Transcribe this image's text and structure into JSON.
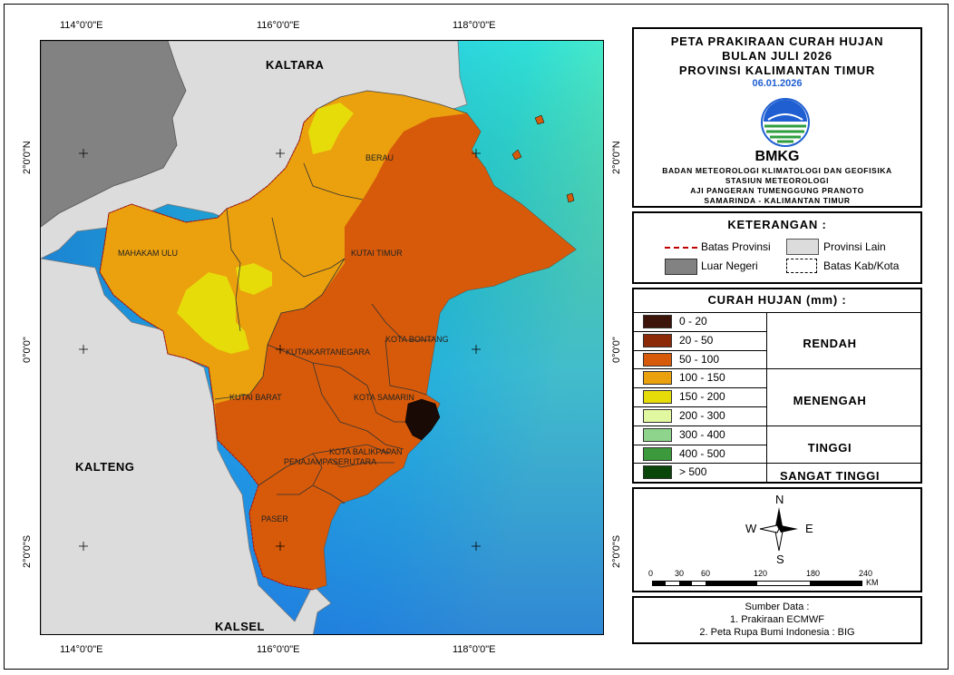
{
  "header": {
    "title_lines": [
      "PETA PRAKIRAAN CURAH HUJAN",
      "BULAN JULI 2026",
      "PROVINSI KALIMANTAN TIMUR"
    ],
    "date": "06.01.2026",
    "logo_text": "BMKG",
    "org_lines": [
      "BADAN METEOROLOGI KLIMATOLOGI DAN GEOFISIKA",
      "STASIUN METEOROLOGI",
      "AJI PANGERAN TUMENGGUNG PRANOTO",
      "SAMARINDA - KALIMANTAN TIMUR"
    ]
  },
  "legend": {
    "title": "KETERANGAN :",
    "items": {
      "batas_provinsi": "Batas Provinsi",
      "provinsi_lain": "Provinsi Lain",
      "luar_negeri": "Luar Negeri",
      "batas_kab": "Batas Kab/Kota"
    },
    "colors": {
      "batas_provinsi": "#c00000",
      "provinsi_lain": "#dcdcdc",
      "luar_negeri": "#828282"
    }
  },
  "rainfall": {
    "title": "CURAH HUJAN (mm) :",
    "classes": [
      {
        "label": "0 - 20",
        "color": "#3c1409"
      },
      {
        "label": "20 - 50",
        "color": "#8c2a08"
      },
      {
        "label": "50 - 100",
        "color": "#d65a0a"
      },
      {
        "label": "100 - 150",
        "color": "#eba00e"
      },
      {
        "label": "150  - 200",
        "color": "#e6dc0a"
      },
      {
        "label": "200 - 300",
        "color": "#e1f7a0"
      },
      {
        "label": "300 - 400",
        "color": "#8fd48c"
      },
      {
        "label": "400 - 500",
        "color": "#3c9a3c"
      },
      {
        "label": "> 500",
        "color": "#0a460a"
      }
    ],
    "categories": [
      "RENDAH",
      "MENENGAH",
      "TINGGI",
      "SANGAT TINGGI"
    ]
  },
  "compass": {
    "n": "N",
    "s": "S",
    "e": "E",
    "w": "W"
  },
  "scale": {
    "ticks": [
      "0",
      "30",
      "60",
      "120",
      "180",
      "240"
    ],
    "unit": "KM"
  },
  "source": {
    "title": "Sumber Data :",
    "lines": [
      "1. Prakiraan ECMWF",
      "2. Peta Rupa Bumi Indonesia : BIG"
    ]
  },
  "coordinates": {
    "longitudes": [
      "114°0'0\"E",
      "116°0'0\"E",
      "118°0'0\"E"
    ],
    "latitudes": [
      "2°0'0\"N",
      "0°0'0\"",
      "2°0'0\"S"
    ]
  },
  "map_labels": {
    "kaltara": "KALTARA",
    "kalteng": "KALTENG",
    "kalsel": "KALSEL",
    "berau": "BERAU",
    "mahakam_ulu": "MAHAKAM ULU",
    "kutai_timur": "KUTAI TIMUR",
    "kota_bontang": "KOTA BONTANG",
    "kutai_kartanegara": "KUTAIKARTANEGARA",
    "kutai_barat": "KUTAI BARAT",
    "kota_samarinda": "KOTA SAMARIN",
    "kota_balikpapan": "KOTA BALIKPAPAN",
    "penajam": "PENAJAMPASERUTARA",
    "paser": "PASER"
  }
}
